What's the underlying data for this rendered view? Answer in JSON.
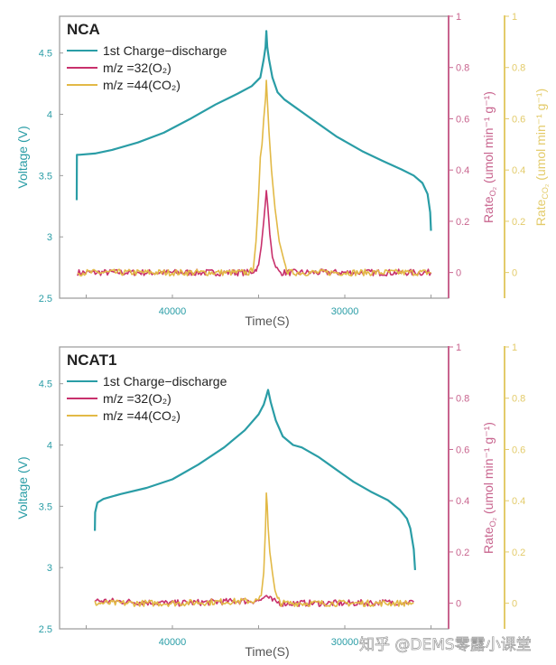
{
  "colors": {
    "voltage": "#2a9da6",
    "o2": "#c8306c",
    "co2": "#e2b946",
    "o2_axis": "#c8648e",
    "co2_axis": "#e3cb6a",
    "frame": "#9a9a9a"
  },
  "watermark": "知乎 @DEMS零露小课堂",
  "chart_data": [
    {
      "type": "line",
      "title": "NCA",
      "xlabel": "Time(S)",
      "ylabel": "Voltage (V)",
      "y2label": {
        "main": "Rate",
        "sub": "O₂",
        "unit": " (umol min⁻¹ g⁻¹)"
      },
      "y3label": {
        "main": "Rate",
        "sub": "CO₂",
        "unit": " (umol min⁻¹ g⁻¹)"
      },
      "xlim": [
        46545,
        23980
      ],
      "x_reversed": true,
      "xticks": [
        45000,
        40000,
        35000,
        30000,
        25000
      ],
      "xticklabels": [
        "",
        "40000",
        "",
        "30000",
        ""
      ],
      "ylim": [
        2.5,
        4.8
      ],
      "yticks": [
        "2.5",
        "3",
        "3.5",
        "4",
        "4.5"
      ],
      "y2lim": [
        -0.1,
        1
      ],
      "y2ticks": [
        "0",
        "0.2",
        "0.4",
        "0.6",
        "0.8",
        "1"
      ],
      "y3lim": [
        -0.1,
        1
      ],
      "y3ticks": [
        "0",
        "0.2",
        "0.4",
        "0.6",
        "0.8",
        "1"
      ],
      "legend": [
        "1st Charge−discharge",
        "m/z =32(O₂)",
        "m/z =44(CO₂)"
      ],
      "legend_position": "top-left",
      "series": [
        {
          "name": "1st Charge−discharge",
          "axis": "voltage",
          "x": [
            45550,
            45540,
            45400,
            44500,
            43500,
            42000,
            40500,
            39000,
            37500,
            36200,
            35400,
            34900,
            34700,
            34600,
            34550,
            34500,
            34400,
            34200,
            33900,
            33500,
            32800,
            31800,
            30500,
            29000,
            27800,
            26700,
            26000,
            25500,
            25200,
            25050,
            25000
          ],
          "y": [
            3.3,
            3.67,
            3.67,
            3.68,
            3.71,
            3.77,
            3.85,
            3.96,
            4.08,
            4.17,
            4.23,
            4.3,
            4.45,
            4.55,
            4.68,
            4.55,
            4.45,
            4.3,
            4.18,
            4.12,
            4.05,
            3.95,
            3.82,
            3.7,
            3.62,
            3.55,
            3.5,
            3.44,
            3.35,
            3.2,
            3.05
          ]
        },
        {
          "name": "m/z =32(O₂)",
          "axis": "o2",
          "x": [
            45500,
            40000,
            35500,
            35200,
            35000,
            34850,
            34700,
            34600,
            34550,
            34480,
            34350,
            34200,
            34000,
            33800,
            33500,
            30000,
            25000
          ],
          "y": [
            0,
            0,
            0,
            0.01,
            0.03,
            0.1,
            0.2,
            0.28,
            0.32,
            0.27,
            0.15,
            0.06,
            0.02,
            0,
            0,
            0,
            0
          ]
        },
        {
          "name": "m/z =44(CO₂)",
          "axis": "co2",
          "x": [
            45500,
            40000,
            35500,
            35300,
            35150,
            35000,
            34900,
            34800,
            34700,
            34600,
            34550,
            34500,
            34400,
            34250,
            34050,
            33800,
            33500,
            33300,
            30000,
            25000
          ],
          "y": [
            0,
            0,
            0,
            0.02,
            0.12,
            0.3,
            0.45,
            0.5,
            0.6,
            0.68,
            0.75,
            0.68,
            0.55,
            0.4,
            0.25,
            0.12,
            0.04,
            0,
            0,
            0
          ]
        }
      ]
    },
    {
      "type": "line",
      "title": "NCAT1",
      "xlabel": "Time(S)",
      "ylabel": "Voltage (V)",
      "y2label": {
        "main": "Rate",
        "sub": "O₂",
        "unit": " (umol min⁻¹ g⁻¹)"
      },
      "xlim": [
        46545,
        23980
      ],
      "x_reversed": true,
      "xticks": [
        45000,
        40000,
        35000,
        30000,
        25000
      ],
      "xticklabels": [
        "",
        "40000",
        "",
        "30000",
        ""
      ],
      "ylim": [
        2.5,
        4.8
      ],
      "yticks": [
        "2.5",
        "3",
        "3.5",
        "4",
        "4.5"
      ],
      "y2lim": [
        -0.1,
        1
      ],
      "y2ticks": [
        "0",
        "0.2",
        "0.4",
        "0.6",
        "0.8",
        "1"
      ],
      "y3lim": [
        -0.1,
        1
      ],
      "y3ticks": [
        "0",
        "0.2",
        "0.4",
        "0.6",
        "0.8",
        "1"
      ],
      "legend": [
        "1st Charge−discharge",
        "m/z =32(O₂)",
        "m/z =44(CO₂)"
      ],
      "legend_position": "top-left",
      "series": [
        {
          "name": "1st Charge−discharge",
          "axis": "voltage",
          "x": [
            44500,
            44480,
            44350,
            44000,
            43000,
            41500,
            40000,
            38500,
            37000,
            35800,
            35000,
            34700,
            34550,
            34450,
            34300,
            34000,
            33600,
            33000,
            32500,
            31500,
            30500,
            29500,
            28500,
            27500,
            26800,
            26400,
            26200,
            26000,
            25920
          ],
          "y": [
            3.3,
            3.45,
            3.53,
            3.56,
            3.6,
            3.65,
            3.72,
            3.84,
            3.98,
            4.12,
            4.25,
            4.33,
            4.4,
            4.45,
            4.35,
            4.2,
            4.07,
            4.0,
            3.98,
            3.9,
            3.8,
            3.7,
            3.62,
            3.55,
            3.47,
            3.4,
            3.32,
            3.15,
            2.98
          ]
        },
        {
          "name": "m/z =32(O₂)",
          "axis": "o2",
          "x": [
            44500,
            40000,
            35000,
            34800,
            34650,
            34550,
            34400,
            34200,
            34000,
            33600,
            30000,
            26000
          ],
          "y": [
            0.01,
            0,
            0.01,
            0.015,
            0.025,
            0.03,
            0.02,
            0.01,
            0.005,
            0,
            0,
            0.005
          ]
        },
        {
          "name": "m/z =44(CO₂)",
          "axis": "co2",
          "x": [
            44500,
            40000,
            35000,
            34850,
            34700,
            34600,
            34550,
            34500,
            34450,
            34350,
            34200,
            34050,
            33900,
            33700,
            30000,
            26000
          ],
          "y": [
            0,
            0,
            0.01,
            0.03,
            0.12,
            0.3,
            0.43,
            0.38,
            0.3,
            0.2,
            0.12,
            0.05,
            0.02,
            0,
            0,
            0
          ]
        }
      ]
    }
  ]
}
